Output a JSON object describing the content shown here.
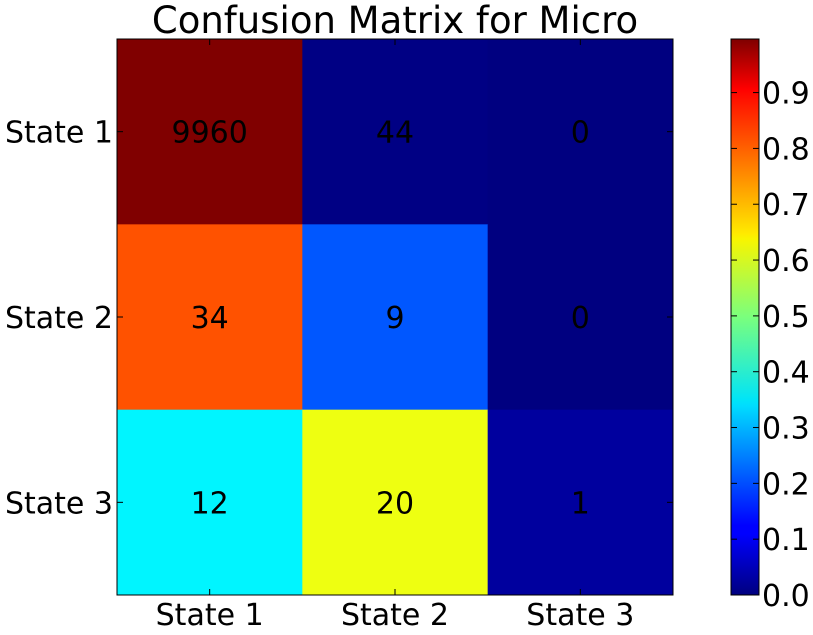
{
  "chart_data": {
    "type": "heatmap",
    "title": "Confusion Matrix for Micro",
    "row_labels": [
      "State 1",
      "State 2",
      "State 3"
    ],
    "col_labels": [
      "State 1",
      "State 2",
      "State 3"
    ],
    "counts": [
      [
        9960,
        44,
        0
      ],
      [
        34,
        9,
        0
      ],
      [
        12,
        20,
        1
      ]
    ],
    "normalized_values": [
      [
        0.996,
        0.004,
        0.0
      ],
      [
        0.791,
        0.209,
        0.0
      ],
      [
        0.364,
        0.606,
        0.03
      ]
    ],
    "colormap": "jet",
    "colorbar": {
      "range": [
        0.0,
        0.996
      ],
      "ticks": [
        "0.0",
        "0.1",
        "0.2",
        "0.3",
        "0.4",
        "0.5",
        "0.6",
        "0.7",
        "0.8",
        "0.9"
      ]
    },
    "grid": false,
    "legend": "none"
  }
}
